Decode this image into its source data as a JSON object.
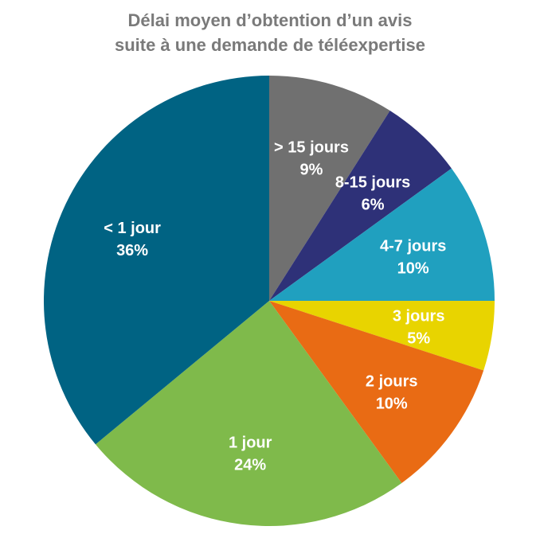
{
  "title_lines": [
    "Délai moyen d’obtention d’un avis",
    "suite à une demande de téléexpertise"
  ],
  "chart_data": {
    "type": "pie",
    "title": "Délai moyen d’obtention d’un avis suite à une demande de téléexpertise",
    "legend": "none",
    "slices": [
      {
        "label": "> 15 jours",
        "value": 9,
        "display": "9%",
        "color": "#707070"
      },
      {
        "label": "8-15 jours",
        "value": 6,
        "display": "6%",
        "color": "#2e3178"
      },
      {
        "label": "4-7 jours",
        "value": 10,
        "display": "10%",
        "color": "#20a0bf"
      },
      {
        "label": "3 jours",
        "value": 5,
        "display": "5%",
        "color": "#e8d400"
      },
      {
        "label": "2 jours",
        "value": 10,
        "display": "10%",
        "color": "#e96b14"
      },
      {
        "label": "1 jour",
        "value": 24,
        "display": "24%",
        "color": "#7fba4b"
      },
      {
        "label": "< 1 jour",
        "value": 36,
        "display": "36%",
        "color": "#006383"
      }
    ]
  }
}
